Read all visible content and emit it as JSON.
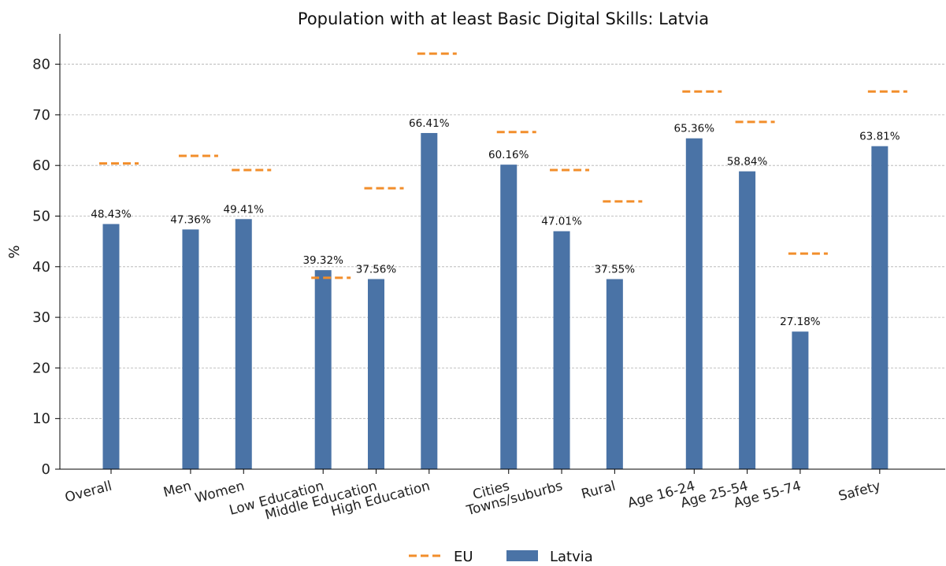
{
  "chart_data": {
    "type": "bar",
    "title": "Population with at least Basic Digital Skills: Latvia",
    "xlabel": "",
    "ylabel": "%",
    "ylim": [
      0,
      86
    ],
    "yticks": [
      0,
      10,
      20,
      30,
      40,
      50,
      60,
      70,
      80
    ],
    "grid": true,
    "legend_placement": "bottom-center",
    "categories": [
      "Overall",
      "Men",
      "Women",
      "Low Education",
      "Middle Education",
      "High Education",
      "Cities",
      "Towns/suburbs",
      "Rural",
      "Age 16-24",
      "Age 25-54",
      "Age 55-74",
      "Safety"
    ],
    "groups": [
      [
        0
      ],
      [
        1,
        2
      ],
      [
        3,
        4,
        5
      ],
      [
        6,
        7,
        8
      ],
      [
        9,
        10,
        11
      ],
      [
        12
      ]
    ],
    "series": [
      {
        "name": "Latvia",
        "kind": "bar",
        "color": "#4a73a6",
        "values": [
          48.43,
          47.36,
          49.41,
          39.32,
          37.56,
          66.41,
          60.16,
          47.01,
          37.55,
          65.36,
          58.84,
          27.18,
          63.81
        ],
        "labels": [
          "48.43%",
          "47.36%",
          "49.41%",
          "39.32%",
          "37.56%",
          "66.41%",
          "60.16%",
          "47.01%",
          "37.55%",
          "65.36%",
          "58.84%",
          "27.18%",
          "63.81%"
        ]
      },
      {
        "name": "EU",
        "kind": "dashed-marker",
        "color": "#f28e2b",
        "values": [
          60.4,
          61.9,
          59.1,
          37.8,
          55.5,
          82.1,
          66.6,
          59.1,
          52.9,
          74.6,
          68.6,
          42.6,
          74.6
        ]
      }
    ]
  }
}
